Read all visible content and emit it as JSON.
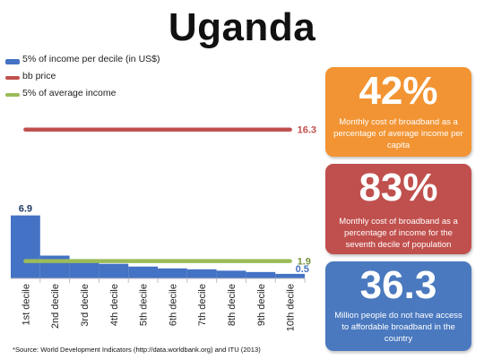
{
  "title": "Uganda",
  "legend": [
    {
      "label": "5% of income per decile (in US$)",
      "color": "#4472c4"
    },
    {
      "label": "bb price",
      "color": "#c0504d"
    },
    {
      "label": "5% of average income",
      "color": "#9bbb59"
    }
  ],
  "chart_data": {
    "type": "bar",
    "categories": [
      "1st decile",
      "2nd decile",
      "3rd decile",
      "4th decile",
      "5th decile",
      "6th decile",
      "7th decile",
      "8th decile",
      "9th decile",
      "10th decile"
    ],
    "series": [
      {
        "name": "5% of income per decile (in US$)",
        "type": "bar",
        "color": "#4472c4",
        "values": [
          6.9,
          2.5,
          1.9,
          1.6,
          1.3,
          1.1,
          1.0,
          0.85,
          0.7,
          0.5
        ]
      },
      {
        "name": "bb price",
        "type": "line",
        "color": "#c0504d",
        "values": [
          16.3,
          16.3,
          16.3,
          16.3,
          16.3,
          16.3,
          16.3,
          16.3,
          16.3,
          16.3
        ]
      },
      {
        "name": "5% of average income",
        "type": "line",
        "color": "#9bbb59",
        "values": [
          1.9,
          1.9,
          1.9,
          1.9,
          1.9,
          1.9,
          1.9,
          1.9,
          1.9,
          1.9
        ]
      }
    ],
    "data_labels": [
      {
        "series": "5% of income per decile (in US$)",
        "category": "1st decile",
        "text": "6.9",
        "color": "#1f3864"
      },
      {
        "series": "5% of income per decile (in US$)",
        "category": "10th decile",
        "text": "0.5",
        "color": "#4472c4"
      },
      {
        "series": "bb price",
        "category": "10th decile",
        "text": "16.3",
        "color": "#c0504d"
      },
      {
        "series": "5% of average income",
        "category": "10th decile",
        "text": "1.9",
        "color": "#76923c"
      }
    ],
    "ylim": [
      0,
      17.5
    ],
    "grid": false,
    "legend_position": "top-left"
  },
  "cards": [
    {
      "big": "42%",
      "text": "Monthly cost of broadband as a percentage of average income per capita",
      "color": "#f29433"
    },
    {
      "big": "83%",
      "text": "Monthly cost of broadband as a percentage of income for the seventh decile of population",
      "color": "#c0504d"
    },
    {
      "big": "36.3",
      "text": "Million people do not have access to affordable broadband in the country",
      "color": "#4a79bf"
    }
  ],
  "source": "*Source: World Development Indicators (http://data.worldbank.org) and ITU (2013)"
}
